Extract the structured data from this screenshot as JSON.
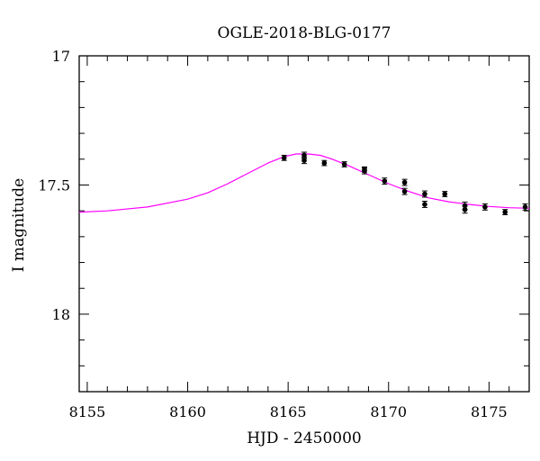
{
  "chart_data": {
    "type": "scatter",
    "title": "OGLE-2018-BLG-0177",
    "xlabel": "HJD - 2450000",
    "ylabel": "I magnitude",
    "xlim": [
      8154.6,
      8177.0
    ],
    "ylim": [
      18.3,
      17.0
    ],
    "y_inverted": true,
    "x_ticks": [
      "8155",
      "8160",
      "8165",
      "8170",
      "8175"
    ],
    "x_tick_values": [
      8155,
      8160,
      8165,
      8170,
      8175
    ],
    "y_ticks": [
      "17",
      "17.5",
      "18"
    ],
    "y_tick_values": [
      17.0,
      17.5,
      18.0
    ],
    "grid": false,
    "colors": {
      "model": "#ff00ff",
      "points": "#000000",
      "frame": "#000000"
    },
    "series": [
      {
        "type": "scatter",
        "x": [
          8164.8,
          8165.8,
          8165.8,
          8166.8,
          8167.8,
          8168.8,
          8168.8,
          8169.8,
          8170.8,
          8170.8,
          8171.8,
          8171.8,
          8172.8,
          8173.8,
          8173.8,
          8174.8,
          8175.8,
          8176.8
        ],
        "y": [
          17.395,
          17.385,
          17.405,
          17.415,
          17.42,
          17.44,
          17.445,
          17.485,
          17.49,
          17.525,
          17.535,
          17.575,
          17.535,
          17.58,
          17.595,
          17.585,
          17.605,
          17.585
        ],
        "yerr": [
          0.01,
          0.012,
          0.012,
          0.01,
          0.01,
          0.01,
          0.012,
          0.012,
          0.012,
          0.012,
          0.012,
          0.012,
          0.01,
          0.014,
          0.014,
          0.012,
          0.01,
          0.012
        ]
      },
      {
        "type": "line",
        "x": [
          8154.6,
          8156,
          8158,
          8160,
          8161,
          8162,
          8163,
          8164,
          8164.8,
          8165.4,
          8166.0,
          8166.6,
          8167.2,
          8168,
          8169,
          8170,
          8171,
          8172,
          8173,
          8174,
          8175,
          8176,
          8177
        ],
        "y": [
          17.605,
          17.6,
          17.585,
          17.555,
          17.53,
          17.495,
          17.455,
          17.415,
          17.39,
          17.38,
          17.38,
          17.385,
          17.4,
          17.425,
          17.46,
          17.495,
          17.525,
          17.55,
          17.565,
          17.575,
          17.583,
          17.588,
          17.59
        ]
      }
    ]
  }
}
